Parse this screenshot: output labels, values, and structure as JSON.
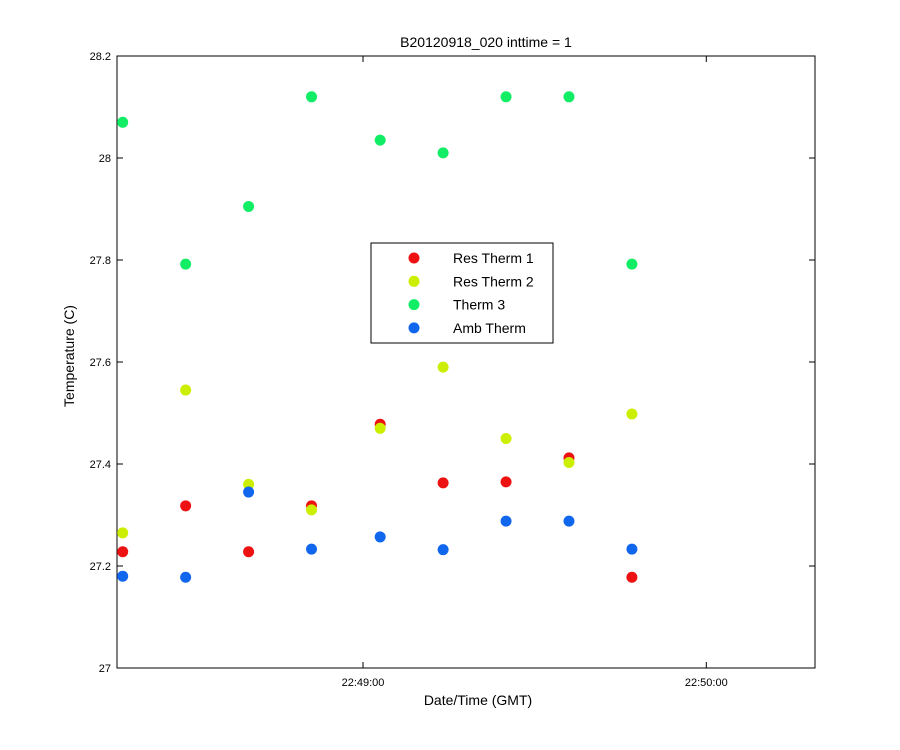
{
  "chart_data": {
    "type": "scatter",
    "title": "B20120918_020 inttime = 1",
    "xlabel": "Date/Time (GMT)",
    "ylabel": "Temperature (C)",
    "x_unit": "time (HH:MM:SS, GMT)",
    "xlim": [
      "22:48:17",
      "22:50:19"
    ],
    "ylim": [
      27,
      28.2
    ],
    "x_ticks": [
      "22:49:00",
      "22:50:00"
    ],
    "y_ticks": [
      "27",
      "27.2",
      "27.4",
      "27.6",
      "27.8",
      "28",
      "28.2"
    ],
    "grid": false,
    "legend_position": "center",
    "x": [
      "22:48:18",
      "22:48:29",
      "22:48:40",
      "22:48:51",
      "22:49:03",
      "22:49:14",
      "22:49:25",
      "22:49:36",
      "22:49:47"
    ],
    "series": [
      {
        "name": "Res Therm 1",
        "color": "#ee1111",
        "x": [
          "22:48:18",
          "22:48:29",
          "22:48:40",
          "22:48:51",
          "22:49:03",
          "22:49:14",
          "22:49:25",
          "22:49:36",
          "22:49:47"
        ],
        "values": [
          27.228,
          27.318,
          27.228,
          27.318,
          27.478,
          27.363,
          27.365,
          27.412,
          27.178
        ]
      },
      {
        "name": "Res Therm 2",
        "color": "#ccee00",
        "x": [
          "22:48:18",
          "22:48:29",
          "22:48:40",
          "22:48:51",
          "22:49:03",
          "22:49:14",
          "22:49:25",
          "22:49:36",
          "22:49:47"
        ],
        "values": [
          27.265,
          27.545,
          27.36,
          27.31,
          27.47,
          27.59,
          27.45,
          27.403,
          27.498
        ]
      },
      {
        "name": "Therm 3",
        "color": "#11ee66",
        "x": [
          "22:48:18",
          "22:48:29",
          "22:48:40",
          "22:48:51",
          "22:49:03",
          "22:49:14",
          "22:49:25",
          "22:49:36",
          "22:49:47"
        ],
        "values": [
          28.07,
          27.792,
          27.905,
          28.12,
          28.035,
          28.01,
          28.12,
          28.12,
          27.792
        ]
      },
      {
        "name": "Amb Therm",
        "color": "#1166ee",
        "x": [
          "22:48:18",
          "22:48:29",
          "22:48:40",
          "22:48:51",
          "22:49:03",
          "22:49:14",
          "22:49:25",
          "22:49:36",
          "22:49:47"
        ],
        "values": [
          27.18,
          27.178,
          27.345,
          27.233,
          27.257,
          27.232,
          27.288,
          27.288,
          27.233
        ]
      }
    ]
  }
}
